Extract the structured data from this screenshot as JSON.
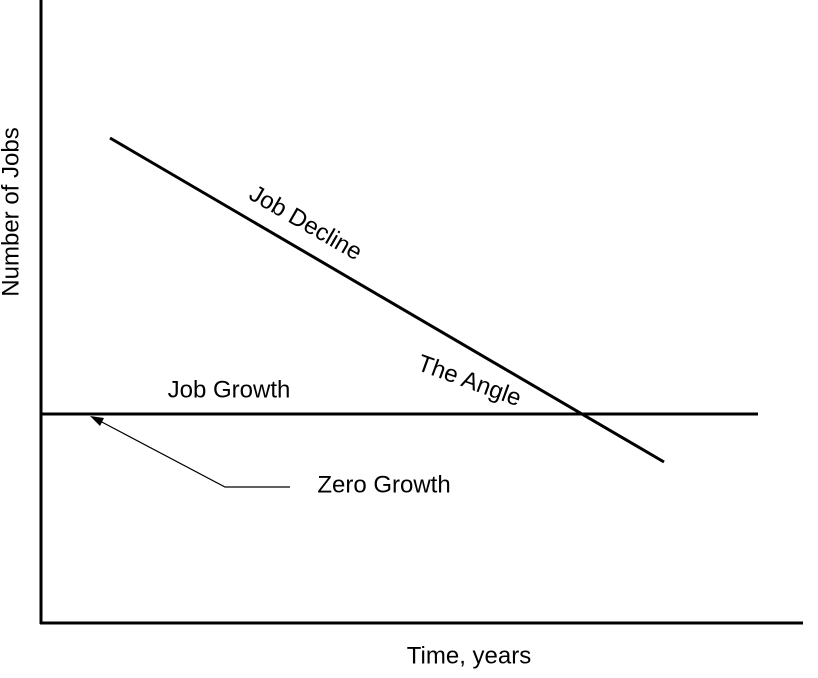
{
  "axes": {
    "x_label": "Time, years",
    "y_label": "Number of Jobs"
  },
  "annotations": {
    "job_decline": "Job Decline",
    "the_angle": "The Angle",
    "job_growth": "Job Growth",
    "zero_growth": "Zero Growth"
  }
}
